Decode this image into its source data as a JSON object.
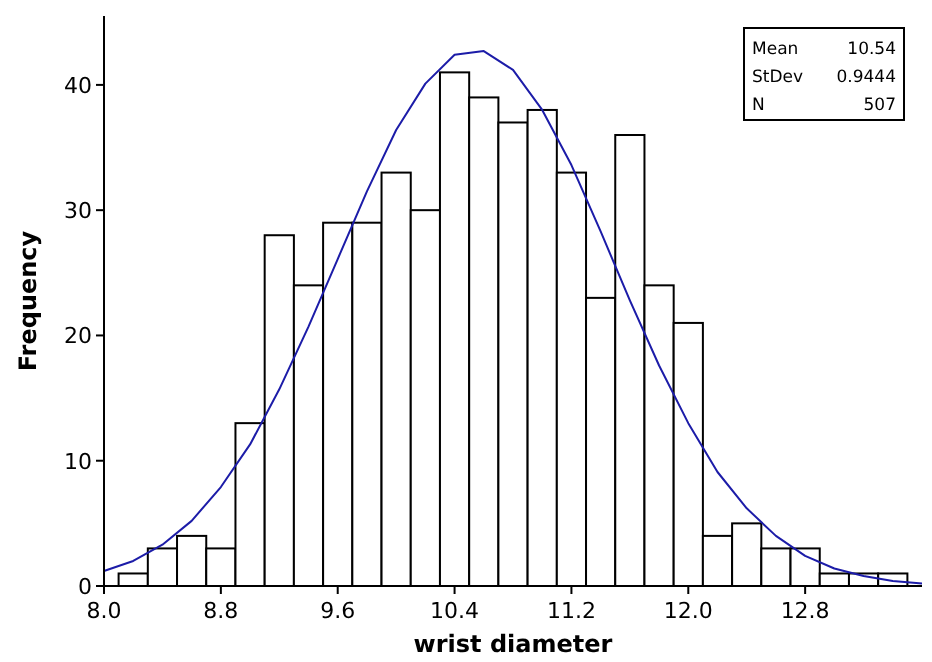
{
  "chart_data": {
    "type": "histogram",
    "xlabel": "wrist diameter",
    "ylabel": "Frequency",
    "xlim": [
      8.0,
      13.6
    ],
    "ylim": [
      0,
      45.5
    ],
    "xticks": [
      {
        "value": 8.0,
        "label": "8.0"
      },
      {
        "value": 8.8,
        "label": "8.8"
      },
      {
        "value": 9.6,
        "label": "9.6"
      },
      {
        "value": 10.4,
        "label": "10.4"
      },
      {
        "value": 11.2,
        "label": "11.2"
      },
      {
        "value": 12.0,
        "label": "12.0"
      },
      {
        "value": 12.8,
        "label": "12.8"
      }
    ],
    "yticks": [
      0,
      10,
      20,
      30,
      40
    ],
    "series": [
      {
        "color": "#ffffff",
        "bins": [
          8.1,
          8.3,
          8.5,
          8.7,
          8.9,
          9.1,
          9.3,
          9.5,
          9.7,
          9.9,
          10.1,
          10.3,
          10.5,
          10.7,
          10.9,
          11.1,
          11.3,
          11.5,
          11.7,
          11.9,
          12.1,
          12.3,
          12.5,
          12.7,
          12.9,
          13.1,
          13.3,
          13.5
        ],
        "values": [
          1,
          3,
          4,
          3,
          13,
          28,
          24,
          29,
          29,
          33,
          30,
          41,
          39,
          37,
          38,
          33,
          23,
          36,
          24,
          21,
          4,
          5,
          3,
          3,
          1,
          1,
          1
        ]
      },
      {
        "type": "line",
        "color": "#1c1ca8",
        "x": [
          8.0,
          8.2,
          8.4,
          8.6,
          8.8,
          9.0,
          9.2,
          9.4,
          9.6,
          9.8,
          10.0,
          10.2,
          10.4,
          10.6,
          10.8,
          11.0,
          11.2,
          11.4,
          11.6,
          11.8,
          12.0,
          12.2,
          12.4,
          12.6,
          12.8,
          13.0,
          13.2,
          13.4,
          13.6
        ],
        "values": [
          1.2,
          2.0,
          3.3,
          5.2,
          7.9,
          11.3,
          15.7,
          20.7,
          26.1,
          31.5,
          36.4,
          40.1,
          42.4,
          42.7,
          41.2,
          38.0,
          33.6,
          28.3,
          22.8,
          17.6,
          13.0,
          9.1,
          6.2,
          4.0,
          2.4,
          1.4,
          0.8,
          0.4,
          0.2
        ]
      }
    ],
    "annotations": [
      "Mean 10.54",
      "StDev 0.9444",
      "N 507"
    ],
    "grid": false
  }
}
